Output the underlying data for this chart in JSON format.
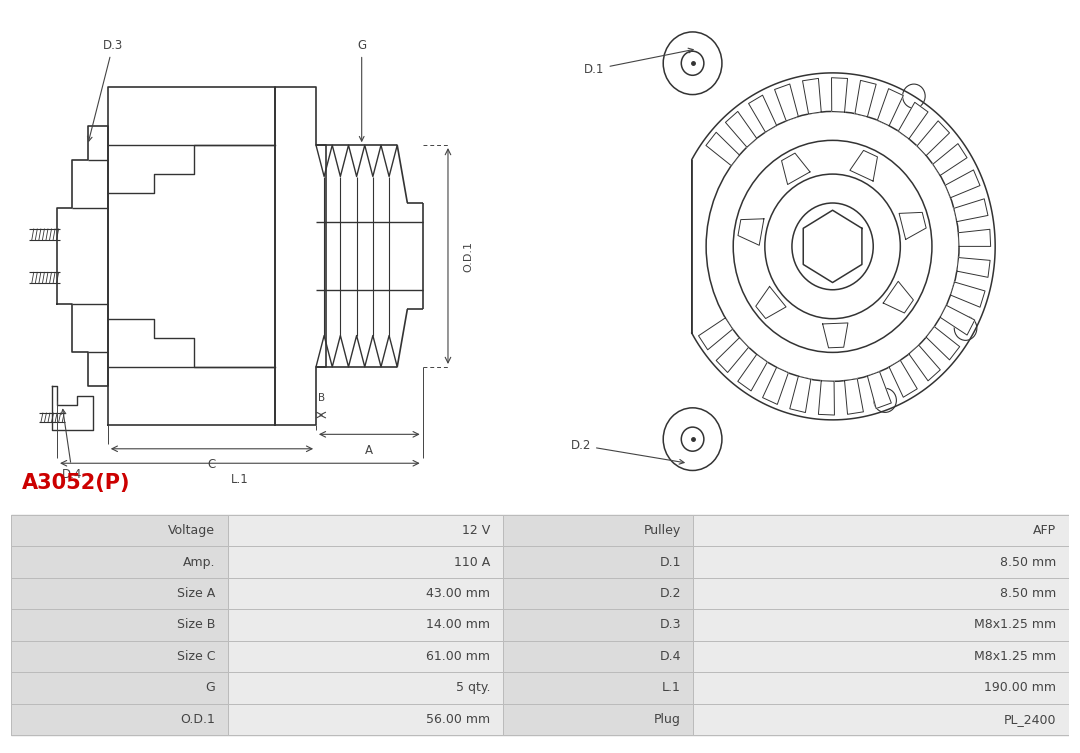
{
  "title": "A3052(P)",
  "title_color": "#cc0000",
  "bg_color": "#ffffff",
  "table_text_color": "#444444",
  "table_data": [
    [
      "Voltage",
      "12 V",
      "Pulley",
      "AFP"
    ],
    [
      "Amp.",
      "110 A",
      "D.1",
      "8.50 mm"
    ],
    [
      "Size A",
      "43.00 mm",
      "D.2",
      "8.50 mm"
    ],
    [
      "Size B",
      "14.00 mm",
      "D.3",
      "M8x1.25 mm"
    ],
    [
      "Size C",
      "61.00 mm",
      "D.4",
      "M8x1.25 mm"
    ],
    [
      "G",
      "5 qty.",
      "L.1",
      "190.00 mm"
    ],
    [
      "O.D.1",
      "56.00 mm",
      "Plug",
      "PL_2400"
    ]
  ],
  "line_color": "#333333",
  "dim_color": "#444444"
}
